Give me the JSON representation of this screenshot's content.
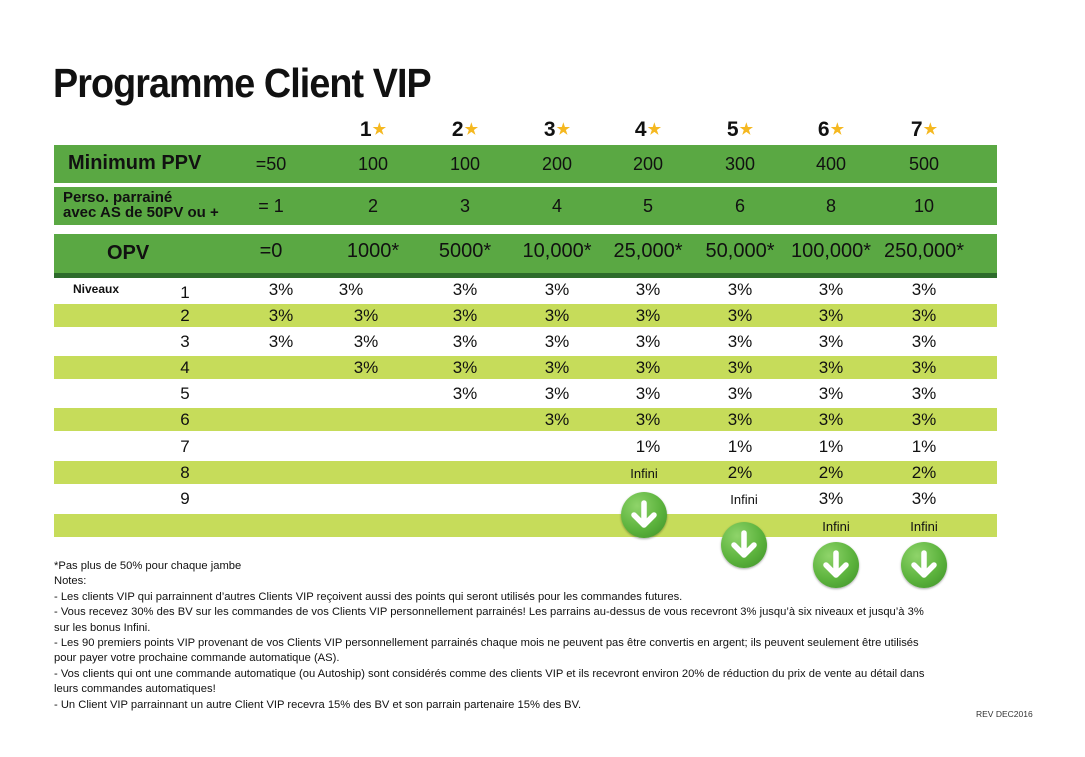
{
  "title": "Programme Client VIP",
  "ranks": [
    "1",
    "2",
    "3",
    "4",
    "5",
    "6",
    "7"
  ],
  "ppv": {
    "label": "Minimum PPV",
    "base": "=50",
    "values": [
      "100",
      "100",
      "200",
      "200",
      "300",
      "400",
      "500"
    ]
  },
  "sponsored": {
    "label_line1": "Perso. parrainé",
    "label_line2": "avec AS de 50PV ou +",
    "base": "= 1",
    "values": [
      "2",
      "3",
      "4",
      "5",
      "6",
      "8",
      "10"
    ]
  },
  "opv": {
    "label": "OPV",
    "base": "=0",
    "values": [
      "1000*",
      "5000*",
      "10,000*",
      "25,000*",
      "50,000*",
      "100,000*",
      "250,000*"
    ]
  },
  "levels_label": "Niveaux",
  "levels": [
    {
      "n": "1",
      "cells": [
        "3%",
        "3%",
        "3%",
        "3%",
        "3%",
        "3%",
        "3%",
        "3%"
      ]
    },
    {
      "n": "2",
      "cells": [
        "3%",
        "3%",
        "3%",
        "3%",
        "3%",
        "3%",
        "3%",
        "3%"
      ]
    },
    {
      "n": "3",
      "cells": [
        "3%",
        "3%",
        "3%",
        "3%",
        "3%",
        "3%",
        "3%",
        "3%"
      ]
    },
    {
      "n": "4",
      "cells": [
        "",
        "3%",
        "3%",
        "3%",
        "3%",
        "3%",
        "3%",
        "3%"
      ]
    },
    {
      "n": "5",
      "cells": [
        "",
        "",
        "3%",
        "3%",
        "3%",
        "3%",
        "3%",
        "3%"
      ]
    },
    {
      "n": "6",
      "cells": [
        "",
        "",
        "",
        "3%",
        "3%",
        "3%",
        "3%",
        "3%"
      ]
    },
    {
      "n": "7",
      "cells": [
        "",
        "",
        "",
        "",
        "1%",
        "1%",
        "1%",
        "1%"
      ]
    },
    {
      "n": "8",
      "cells": [
        "",
        "",
        "",
        "",
        "",
        "2%",
        "2%",
        "2%"
      ]
    },
    {
      "n": "9",
      "cells": [
        "",
        "",
        "",
        "",
        "",
        "",
        "3%",
        "3%"
      ]
    }
  ],
  "infini_label": "Infini",
  "notes": [
    "*Pas plus de 50% pour chaque jambe",
    "Notes:",
    "- Les clients VIP qui parrainnent d’autres Clients VIP reçoivent aussi des points qui seront utilisés pour les commandes futures.",
    "- Vous recevez 30% des BV sur les commandes de vos Clients VIP personnellement parrainés! Les parrains au-dessus de vous recevront 3% jusqu’à six niveaux et jusqu’à 3% sur les bonus Infini.",
    "- Les 90 premiers points VIP provenant de vos Clients VIP personnellement parrainés chaque mois ne peuvent pas être convertis en argent; ils peuvent seulement être utilisés pour payer votre prochaine commande automatique (AS).",
    "- Vos clients qui ont une commande automatique (ou Autoship) sont considérés comme des clients VIP et ils recevront environ 20% de réduction du prix de vente au détail dans leurs commandes automatiques!",
    "- Un Client VIP parrainnant un autre Client VIP recevra 15% des BV et son parrain partenaire 15% des BV."
  ],
  "rev": "REV DEC2016",
  "colors": {
    "green_band": "#5aa843",
    "light_band": "#c6dc5a",
    "dark_line": "#2d6b2b",
    "star": "#f5b820"
  }
}
